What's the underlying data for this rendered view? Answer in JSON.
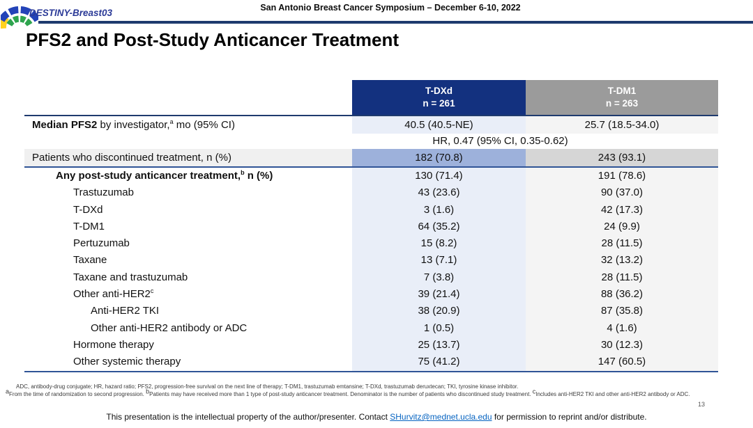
{
  "header": {
    "study": "DESTINY-Breast03",
    "symposium": "San Antonio Breast Cancer Symposium – December 6-10, 2022"
  },
  "title": "PFS2 and Post-Study Anticancer Treatment",
  "table": {
    "columns": [
      {
        "label": "T-DXd",
        "n": "n = 261"
      },
      {
        "label": "T-DM1",
        "n": "n = 263"
      }
    ],
    "median": {
      "label_bold": "Median PFS2",
      "label_mid": " by investigator,",
      "sup": "a",
      "label_end": " mo (95% CI)",
      "tdxd": "40.5 (40.5-NE)",
      "tdm1": "25.7 (18.5-34.0)"
    },
    "hr_text": "HR, 0.47 (95% CI, 0.35-0.62)",
    "discontinued": {
      "label": "Patients who discontinued treatment, n (%)",
      "tdxd": "182 (70.8)",
      "tdm1": "243 (93.1)"
    },
    "rows": [
      {
        "label": "Any post-study anticancer treatment,",
        "sup": "b",
        "suffix": " n (%)",
        "bold": true,
        "indent": 1,
        "tdxd": "130 (71.4)",
        "tdm1": "191 (78.6)"
      },
      {
        "label": "Trastuzumab",
        "indent": 2,
        "tdxd": "43 (23.6)",
        "tdm1": "90 (37.0)"
      },
      {
        "label": "T-DXd",
        "indent": 2,
        "tdxd": "3 (1.6)",
        "tdm1": "42 (17.3)"
      },
      {
        "label": "T-DM1",
        "indent": 2,
        "tdxd": "64 (35.2)",
        "tdm1": "24 (9.9)"
      },
      {
        "label": "Pertuzumab",
        "indent": 2,
        "tdxd": "15 (8.2)",
        "tdm1": "28 (11.5)"
      },
      {
        "label": "Taxane",
        "indent": 2,
        "tdxd": "13 (7.1)",
        "tdm1": "32 (13.2)"
      },
      {
        "label": "Taxane and trastuzumab",
        "indent": 2,
        "tdxd": "7 (3.8)",
        "tdm1": "28 (11.5)"
      },
      {
        "label": "Other anti-HER2",
        "sup": "c",
        "indent": 2,
        "tdxd": "39 (21.4)",
        "tdm1": "88 (36.2)"
      },
      {
        "label": "Anti-HER2 TKI",
        "indent": 3,
        "tdxd": "38 (20.9)",
        "tdm1": "87 (35.8)"
      },
      {
        "label": "Other anti-HER2 antibody or ADC",
        "indent": 3,
        "tdxd": "1 (0.5)",
        "tdm1": "4 (1.6)"
      },
      {
        "label": "Hormone therapy",
        "indent": 2,
        "tdxd": "25 (13.7)",
        "tdm1": "30 (12.3)"
      },
      {
        "label": "Other systemic therapy",
        "indent": 2,
        "tdxd": "75 (41.2)",
        "tdm1": "147 (60.5)"
      }
    ]
  },
  "footnotes": {
    "abbrev": "ADC, antibody-drug conjugate; HR, hazard ratio; PFS2, progression-free survival on the next line of therapy; T-DM1, trastuzumab emtansine; T-DXd, trastuzumab deruxtecan; TKI, tyrosine kinase inhibitor.",
    "notes": [
      {
        "sup": "a",
        "text": "From the time of randomization to second progression. "
      },
      {
        "sup": "b",
        "text": "Patients may have received more than 1 type of post-study anticancer treatment. Denominator is the number of patients who discontinued study treatment. "
      },
      {
        "sup": "c",
        "text": "Includes anti-HER2 TKI and other anti-HER2 antibody or ADC."
      }
    ]
  },
  "footer": {
    "pre": "This presentation is the intellectual property of the author/presenter. Contact ",
    "link": "SHurvitz@mednet.ucla.edu",
    "post": " for permission to reprint and/or distribute."
  },
  "page_number": "13",
  "colors": {
    "header_navy": "#13317F",
    "header_gray": "#9B9B9B",
    "col_tdxd_light": "#E9EEF8",
    "col_tdm1_light": "#F4F4F4",
    "cell_tdxd_medium": "#9DB1DB",
    "cell_tdm1_medium": "#D6D6D6",
    "label_row_gray": "#F0F0F0",
    "rule_navy": "#1E3A6E",
    "rule_blue": "#2F5496",
    "link_blue": "#0563C1",
    "brand_blue": "#2B3A97",
    "logo_blue": "#2343B8",
    "logo_green": "#2EA44E",
    "logo_yellow": "#FFD21E"
  }
}
